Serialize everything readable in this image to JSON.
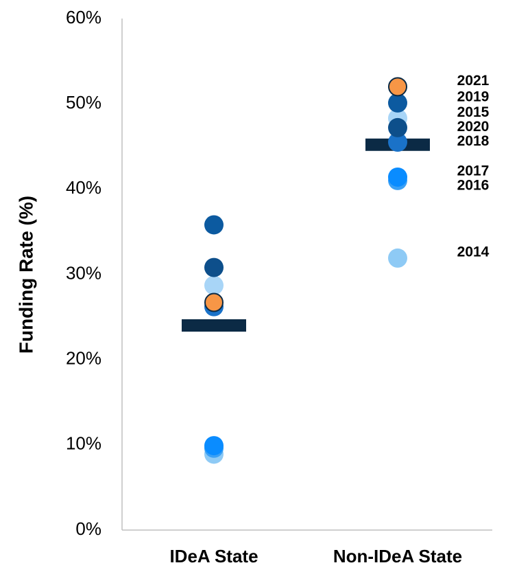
{
  "chart_data": {
    "type": "dot",
    "y_label": "Funding Rate (%)",
    "categories": [
      "IDeA State",
      "Non-IDeA State"
    ],
    "ylim": [
      0,
      60
    ],
    "yticks": [
      {
        "value": 0,
        "label": "0%"
      },
      {
        "value": 10,
        "label": "10%"
      },
      {
        "value": 20,
        "label": "20%"
      },
      {
        "value": 30,
        "label": "30%"
      },
      {
        "value": 40,
        "label": "40%"
      },
      {
        "value": 50,
        "label": "50%"
      },
      {
        "value": 60,
        "label": "60%"
      }
    ],
    "bar_values": [
      24,
      45.2
    ],
    "bar_color": "#0b2a45",
    "series": [
      {
        "name": "2014",
        "color": "#8ecaf5",
        "values": [
          8.9,
          31.9
        ]
      },
      {
        "name": "2016",
        "color": "#3aa0f5",
        "values": [
          9.6,
          41.0
        ]
      },
      {
        "name": "2017",
        "color": "#0a8cff",
        "values": [
          9.9,
          41.4
        ]
      },
      {
        "name": "2018",
        "color": "#1a72c8",
        "values": [
          26.2,
          45.5
        ]
      },
      {
        "name": "2015",
        "color": "#a8d5f7",
        "values": [
          28.7,
          48.3
        ]
      },
      {
        "name": "2020",
        "color": "#0d4f8b",
        "values": [
          30.8,
          47.2
        ]
      },
      {
        "name": "2019",
        "color": "#0c5aa0",
        "values": [
          35.8,
          50.1
        ]
      },
      {
        "name": "2021",
        "color": "#f79646",
        "values": [
          26.7,
          52.0
        ]
      }
    ]
  }
}
